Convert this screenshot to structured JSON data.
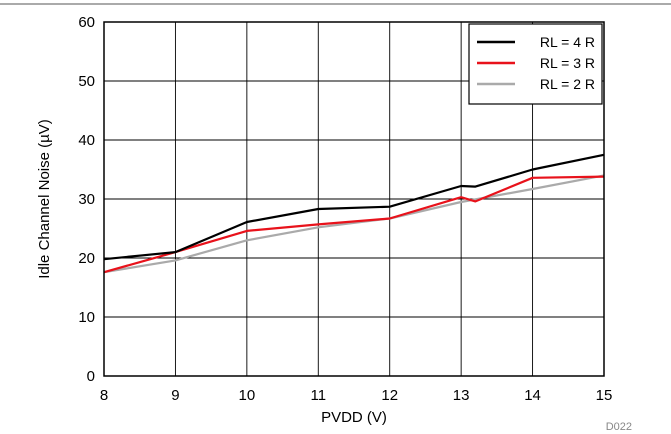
{
  "chart_data": {
    "type": "line",
    "xlabel": "PVDD (V)",
    "ylabel": "Idle Channel Noise (µV)",
    "xlim": [
      8,
      15
    ],
    "ylim": [
      0,
      60
    ],
    "xticks": [
      8,
      9,
      10,
      11,
      12,
      13,
      14,
      15
    ],
    "yticks": [
      0,
      10,
      20,
      30,
      40,
      50,
      60
    ],
    "grid": true,
    "legend_position": "top-right",
    "figure_code": "D022",
    "series": [
      {
        "name": "RL = 4 R",
        "color": "#000000",
        "points": [
          [
            8,
            19.8
          ],
          [
            9,
            21.0
          ],
          [
            10,
            26.1
          ],
          [
            11,
            28.3
          ],
          [
            12,
            28.7
          ],
          [
            13,
            32.2
          ],
          [
            13.2,
            32.1
          ],
          [
            14,
            35.0
          ],
          [
            15,
            37.5
          ]
        ]
      },
      {
        "name": "RL = 3 R",
        "color": "#e8121b",
        "points": [
          [
            8,
            17.6
          ],
          [
            9,
            21.0
          ],
          [
            10,
            24.6
          ],
          [
            11,
            25.7
          ],
          [
            12,
            26.7
          ],
          [
            13,
            30.3
          ],
          [
            13.2,
            29.6
          ],
          [
            14,
            33.6
          ],
          [
            15,
            33.8
          ]
        ]
      },
      {
        "name": "RL = 2 R",
        "color": "#aaaaaa",
        "points": [
          [
            8,
            17.6
          ],
          [
            9,
            19.6
          ],
          [
            10,
            23.0
          ],
          [
            11,
            25.2
          ],
          [
            12,
            26.7
          ],
          [
            13,
            29.5
          ],
          [
            14,
            31.7
          ],
          [
            15,
            34.0
          ]
        ]
      }
    ]
  }
}
